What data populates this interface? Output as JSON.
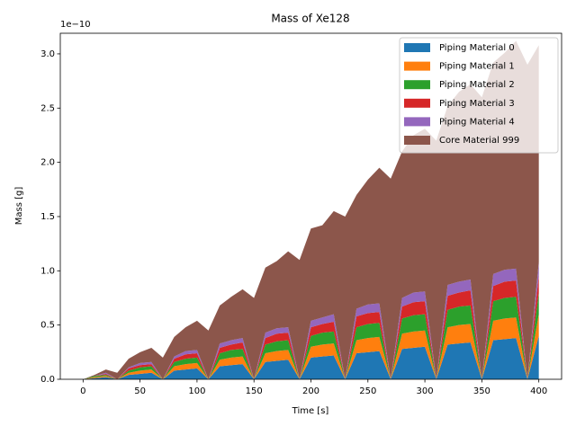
{
  "chart_data": {
    "type": "stackplot",
    "title": "Mass of Xe128",
    "xlabel": "Time [s]",
    "ylabel": "Mass [g]",
    "y_offset_label": "1e−10",
    "x": [
      0,
      10,
      20,
      30,
      40,
      50,
      60,
      70,
      80,
      90,
      100,
      110,
      120,
      130,
      140,
      150,
      160,
      170,
      180,
      190,
      200,
      210,
      220,
      230,
      240,
      250,
      260,
      270,
      280,
      290,
      300,
      310,
      320,
      330,
      340,
      350,
      360,
      370,
      380,
      390,
      400
    ],
    "series": [
      {
        "name": "Piping Material 0",
        "color": "#1f77b4",
        "values": [
          0,
          0.01,
          0.02,
          0,
          0.04,
          0.05,
          0.06,
          0,
          0.08,
          0.09,
          0.1,
          0,
          0.12,
          0.13,
          0.14,
          0,
          0.16,
          0.17,
          0.18,
          0,
          0.2,
          0.21,
          0.22,
          0,
          0.24,
          0.25,
          0.26,
          0,
          0.28,
          0.29,
          0.3,
          0,
          0.32,
          0.33,
          0.34,
          0,
          0.36,
          0.37,
          0.38,
          0,
          0.4
        ]
      },
      {
        "name": "Piping Material 1",
        "color": "#ff7f0e",
        "values": [
          0,
          0.01,
          0.01,
          0,
          0.02,
          0.03,
          0.03,
          0,
          0.04,
          0.05,
          0.05,
          0,
          0.06,
          0.07,
          0.07,
          0,
          0.08,
          0.09,
          0.09,
          0,
          0.1,
          0.11,
          0.11,
          0,
          0.12,
          0.13,
          0.13,
          0,
          0.14,
          0.15,
          0.15,
          0,
          0.16,
          0.17,
          0.17,
          0,
          0.18,
          0.19,
          0.19,
          0,
          0.2
        ]
      },
      {
        "name": "Piping Material 2",
        "color": "#2ca02c",
        "values": [
          0,
          0.01,
          0.01,
          0,
          0.02,
          0.03,
          0.03,
          0,
          0.04,
          0.05,
          0.05,
          0,
          0.06,
          0.07,
          0.07,
          0,
          0.08,
          0.09,
          0.09,
          0,
          0.1,
          0.11,
          0.11,
          0,
          0.12,
          0.13,
          0.13,
          0,
          0.14,
          0.15,
          0.15,
          0,
          0.16,
          0.17,
          0.17,
          0,
          0.18,
          0.19,
          0.19,
          0,
          0.2
        ]
      },
      {
        "name": "Piping Material 3",
        "color": "#d62728",
        "values": [
          0,
          0,
          0.01,
          0,
          0.02,
          0.02,
          0.02,
          0,
          0.03,
          0.04,
          0.04,
          0,
          0.05,
          0.05,
          0.06,
          0,
          0.06,
          0.07,
          0.07,
          0,
          0.08,
          0.08,
          0.09,
          0,
          0.1,
          0.1,
          0.1,
          0,
          0.11,
          0.12,
          0.12,
          0,
          0.13,
          0.13,
          0.14,
          0,
          0.14,
          0.15,
          0.15,
          0,
          0.16
        ]
      },
      {
        "name": "Piping Material 4",
        "color": "#9467bd",
        "values": [
          0,
          0,
          0.01,
          0,
          0.01,
          0.02,
          0.02,
          0,
          0.02,
          0.03,
          0.03,
          0,
          0.04,
          0.04,
          0.04,
          0,
          0.05,
          0.05,
          0.05,
          0,
          0.06,
          0.06,
          0.07,
          0,
          0.07,
          0.08,
          0.08,
          0,
          0.08,
          0.09,
          0.09,
          0,
          0.1,
          0.1,
          0.1,
          0,
          0.11,
          0.11,
          0.11,
          0,
          0.12
        ]
      },
      {
        "name": "Core Material 999",
        "color": "#8c564b",
        "values": [
          0,
          0.01,
          0.03,
          0.06,
          0.08,
          0.1,
          0.13,
          0.2,
          0.18,
          0.22,
          0.27,
          0.45,
          0.35,
          0.4,
          0.45,
          0.75,
          0.6,
          0.62,
          0.7,
          1.1,
          0.85,
          0.85,
          0.95,
          1.5,
          1.05,
          1.15,
          1.25,
          1.85,
          1.35,
          1.45,
          1.5,
          2.2,
          1.65,
          1.75,
          1.8,
          2.6,
          1.95,
          2.0,
          2.1,
          2.9,
          2.0
        ]
      }
    ],
    "xlim": [
      -20,
      420
    ],
    "xticks": [
      0,
      50,
      100,
      150,
      200,
      250,
      300,
      350,
      400
    ],
    "ylim": [
      0,
      3.19
    ],
    "yticks": [
      {
        "value": 0,
        "label": "0.0"
      },
      {
        "value": 0.5,
        "label": "0.5"
      },
      {
        "value": 1,
        "label": "1.0"
      },
      {
        "value": 1.5,
        "label": "1.5"
      },
      {
        "value": 2,
        "label": "2.0"
      },
      {
        "value": 2.5,
        "label": "2.5"
      },
      {
        "value": 3,
        "label": "3.0"
      }
    ],
    "legend": "upper right"
  }
}
